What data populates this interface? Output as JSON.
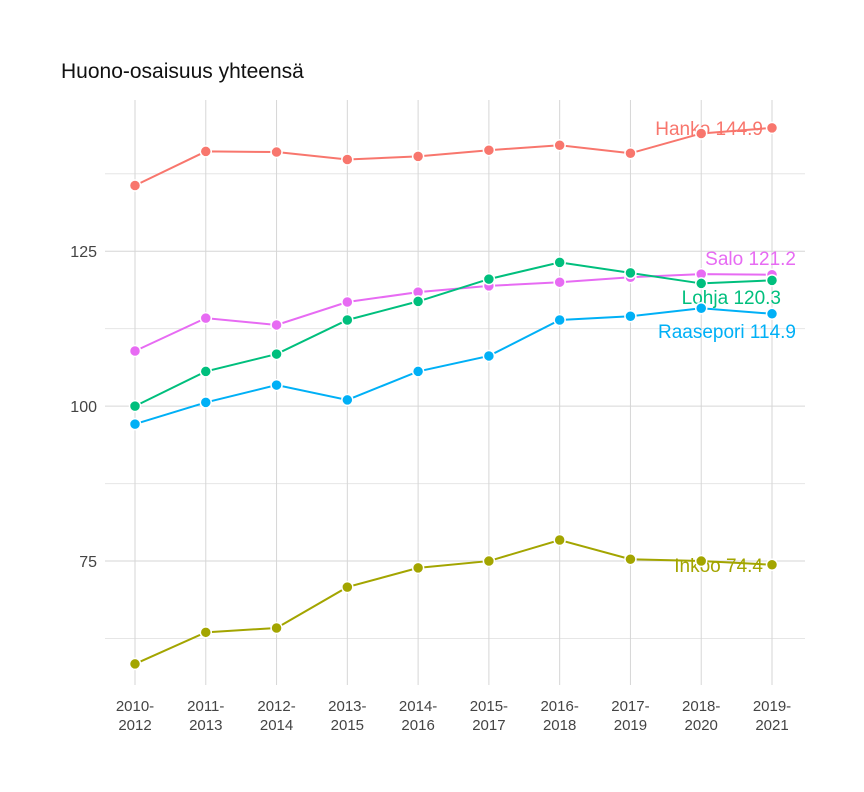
{
  "chart_data": {
    "type": "line",
    "title": "Huono-osaisuus yhteensä",
    "xlabel": "",
    "ylabel": "",
    "categories": [
      "2010-\n2012",
      "2011-\n2013",
      "2012-\n2014",
      "2013-\n2015",
      "2014-\n2016",
      "2015-\n2017",
      "2016-\n2018",
      "2017-\n2019",
      "2018-\n2020",
      "2019-\n2021"
    ],
    "ylim": [
      55,
      149.4
    ],
    "yticks": [
      75,
      100,
      125
    ],
    "minor_yticks": [
      62.5,
      87.5,
      112.5,
      137.5
    ],
    "grid": true,
    "legend": "none (direct labels at line ends)",
    "series": [
      {
        "name": "Hanko",
        "label": "Hanko 144.9",
        "color": "#F8766D",
        "values": [
          135.6,
          141.1,
          141.0,
          139.8,
          140.3,
          141.3,
          142.1,
          140.8,
          144.0,
          144.9
        ]
      },
      {
        "name": "Salo",
        "label": "Salo 121.2",
        "color": "#E76BF3",
        "values": [
          108.9,
          114.2,
          113.1,
          116.8,
          118.4,
          119.4,
          120.0,
          120.8,
          121.3,
          121.2
        ]
      },
      {
        "name": "Lohja",
        "label": "Lohja 120.3",
        "color": "#00BF7D",
        "values": [
          100.0,
          105.6,
          108.4,
          113.9,
          116.9,
          120.5,
          123.2,
          121.5,
          119.8,
          120.3
        ]
      },
      {
        "name": "Raasepori",
        "label": "Raasepori 114.9",
        "color": "#00B0F6",
        "values": [
          97.1,
          100.6,
          103.4,
          101.0,
          105.6,
          108.1,
          113.9,
          114.5,
          115.8,
          114.9
        ]
      },
      {
        "name": "Inkoo",
        "label": "Inkoo 74.4",
        "color": "#A3A500",
        "values": [
          58.4,
          63.5,
          64.2,
          70.8,
          73.9,
          75.0,
          78.4,
          75.3,
          75.0,
          74.4
        ]
      }
    ]
  }
}
